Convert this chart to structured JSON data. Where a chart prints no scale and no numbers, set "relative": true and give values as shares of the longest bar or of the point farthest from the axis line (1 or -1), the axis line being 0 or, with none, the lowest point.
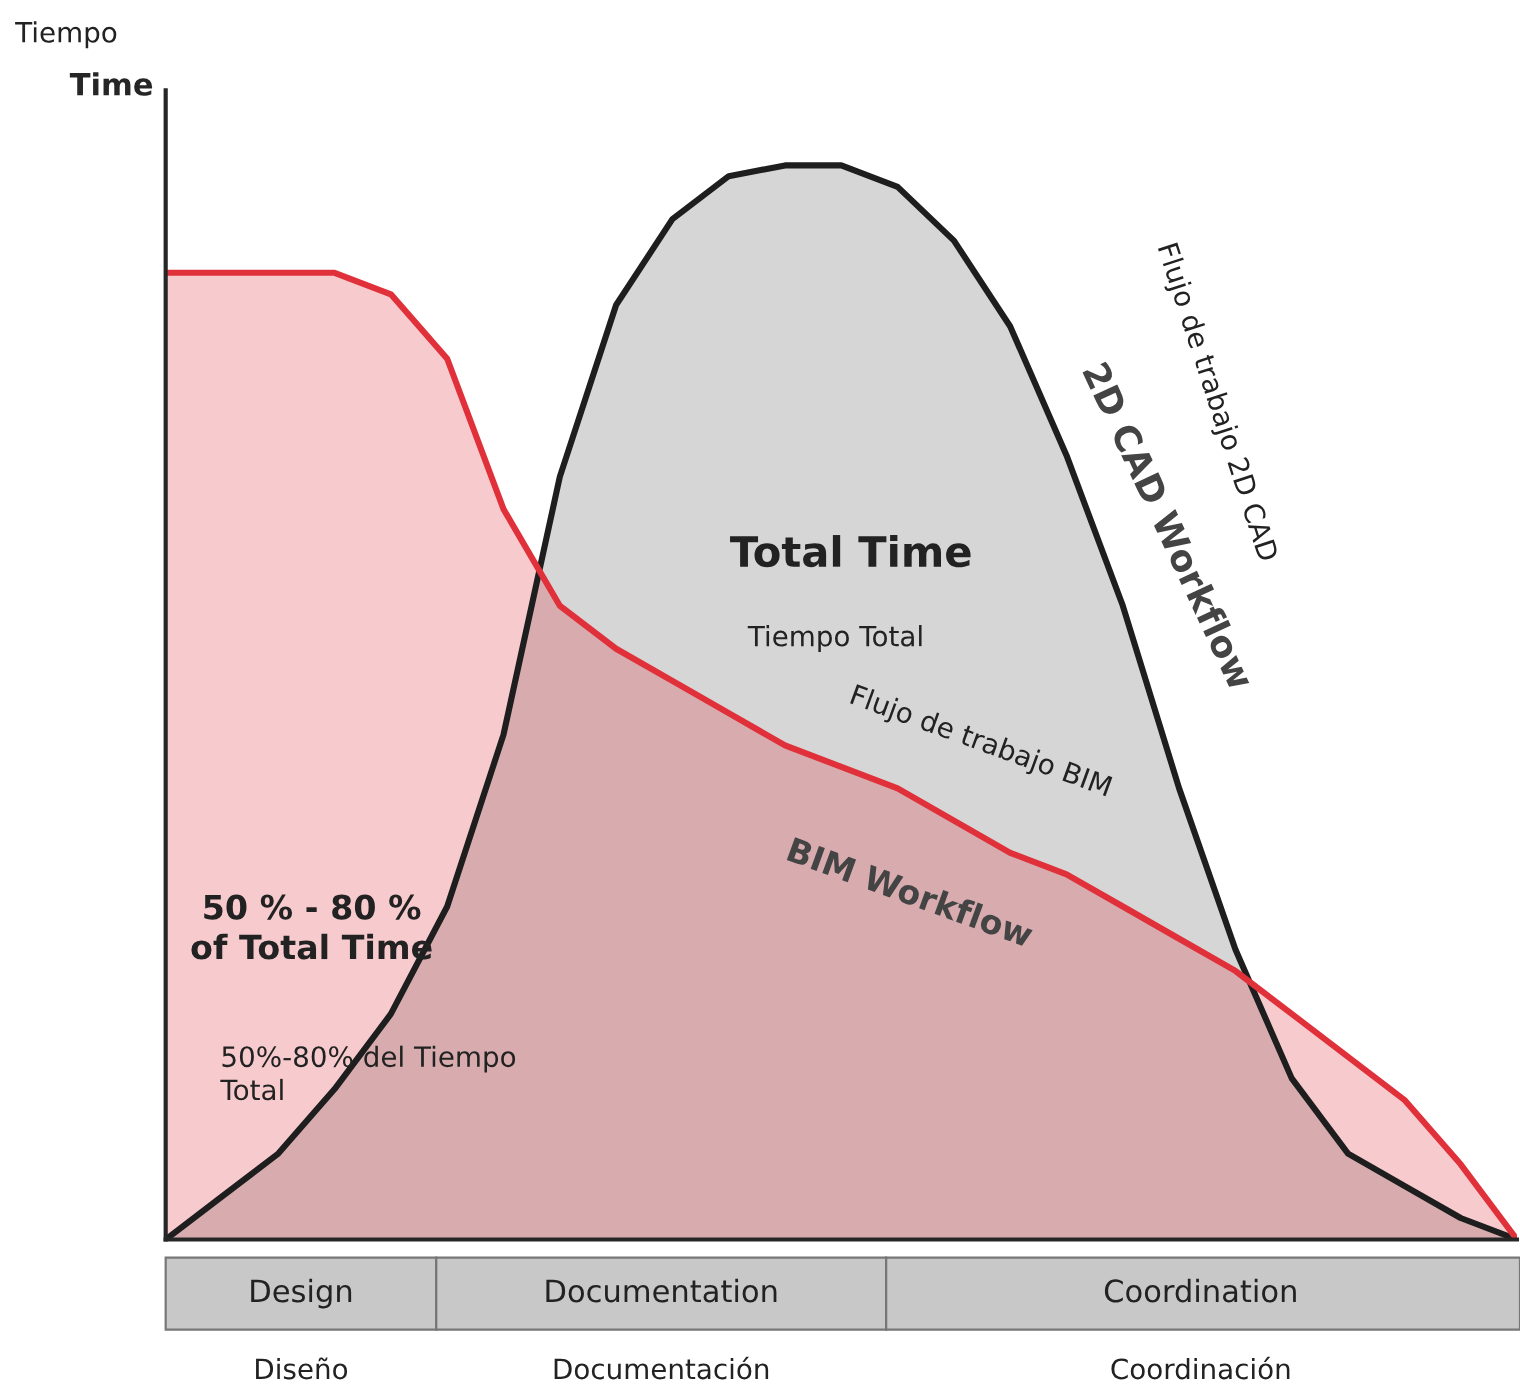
{
  "chart_data": {
    "type": "area",
    "relative": true,
    "legend": false,
    "grid": false,
    "ylabel": "Time",
    "categories": [
      null,
      null,
      null,
      null,
      null,
      null,
      null,
      null,
      null,
      null,
      null,
      null,
      null,
      null,
      null,
      null,
      null,
      null,
      null,
      null,
      null,
      null,
      null,
      null,
      null
    ],
    "series": [
      {
        "name": "2D CAD Workflow",
        "color": "#1e1e1e",
        "values": [
          0,
          0.04,
          0.08,
          0.14,
          0.21,
          0.31,
          0.47,
          0.71,
          0.87,
          0.95,
          0.99,
          1.0,
          1.0,
          0.98,
          0.93,
          0.85,
          0.73,
          0.59,
          0.42,
          0.27,
          0.15,
          0.08,
          0.05,
          0.02,
          0
        ]
      },
      {
        "name": "BIM Workflow",
        "color": "#e0303a",
        "values": [
          0.9,
          0.9,
          0.9,
          0.9,
          0.88,
          0.82,
          0.68,
          0.59,
          0.55,
          0.52,
          0.49,
          0.46,
          0.44,
          0.42,
          0.39,
          0.36,
          0.34,
          0.31,
          0.28,
          0.25,
          0.21,
          0.17,
          0.13,
          0.07,
          0
        ]
      }
    ],
    "annotations": [
      "Tiempo",
      "Total Time",
      "Tiempo Total",
      "50 % - 80 %\nof Total Time",
      "50%-80% del Tiempo\nTotal",
      "Flujo de trabajo 2D CAD",
      "Flujo de trabajo BIM",
      "Design",
      "Diseño",
      "Documentation",
      "Documentación",
      "Coordination",
      "Coordinación"
    ]
  }
}
